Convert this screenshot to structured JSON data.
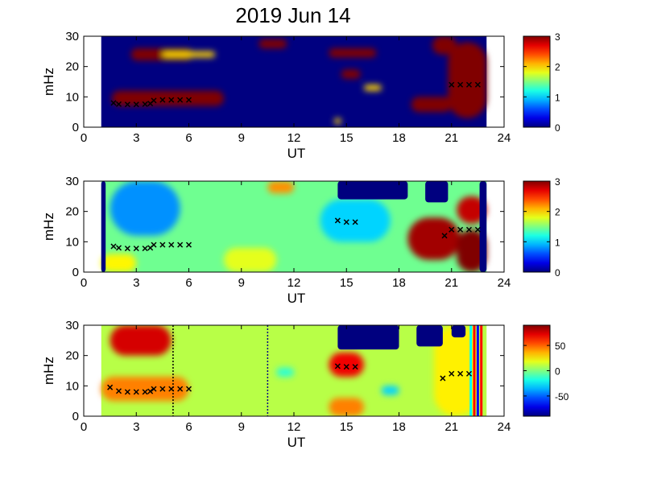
{
  "title": "2019 Jun 14",
  "colors": {
    "background": "#ffffff",
    "no_data": "#00007f",
    "detected_peak": "#7f0000",
    "marker": "#000000",
    "colormap": "jet"
  },
  "chart_data": [
    {
      "type": "heatmap",
      "panel": "top",
      "xlabel": "UT",
      "ylabel": "mHz",
      "xlim": [
        0,
        24
      ],
      "ylim": [
        0,
        30
      ],
      "xticks": [
        "0",
        "3",
        "6",
        "9",
        "12",
        "15",
        "18",
        "21",
        "24"
      ],
      "yticks": [
        "0",
        "10",
        "20",
        "30"
      ],
      "data_range_ut": [
        1,
        23
      ],
      "colorbar": {
        "range": [
          0,
          3
        ],
        "ticks": [
          "0",
          "1",
          "2",
          "3"
        ]
      },
      "background_level": 0,
      "blobs": [
        {
          "x": [
            1.6,
            8.0
          ],
          "y": [
            7,
            12
          ],
          "level": 3
        },
        {
          "x": [
            2.7,
            6.2
          ],
          "y": [
            22,
            26
          ],
          "level": 3
        },
        {
          "x": [
            10.0,
            11.6
          ],
          "y": [
            26,
            29
          ],
          "level": 3
        },
        {
          "x": [
            14.0,
            16.7
          ],
          "y": [
            23,
            26
          ],
          "level": 3
        },
        {
          "x": [
            14.7,
            15.8
          ],
          "y": [
            16,
            19
          ],
          "level": 3
        },
        {
          "x": [
            18.7,
            21.0
          ],
          "y": [
            5,
            10
          ],
          "level": 3
        },
        {
          "x": [
            20.8,
            23.0
          ],
          "y": [
            3,
            28
          ],
          "level": 3
        },
        {
          "x": [
            19.9,
            21.3
          ],
          "y": [
            24,
            30
          ],
          "level": 3
        },
        {
          "x": [
            16.0,
            17.0
          ],
          "y": [
            12,
            14
          ],
          "level": 2
        },
        {
          "x": [
            14.3,
            14.7
          ],
          "y": [
            1,
            3
          ],
          "level": 2
        },
        {
          "x": [
            4.5,
            7.5
          ],
          "y": [
            23,
            25
          ],
          "level": 2
        }
      ],
      "series": [
        {
          "x": [
            1.7,
            2.0,
            2.5,
            3.0,
            3.5,
            3.8,
            4.0,
            4.5,
            5.0,
            5.5,
            6.0
          ],
          "y": [
            8,
            7.6,
            7.5,
            7.5,
            7.6,
            7.8,
            8.8,
            9.0,
            9.0,
            9.0,
            9.0
          ]
        },
        {
          "x": [
            21.0,
            21.5,
            22.0,
            22.5
          ],
          "y": [
            14,
            14,
            14,
            14
          ]
        }
      ]
    },
    {
      "type": "heatmap",
      "panel": "middle",
      "xlabel": "UT",
      "ylabel": "mHz",
      "xlim": [
        0,
        24
      ],
      "ylim": [
        0,
        30
      ],
      "xticks": [
        "0",
        "3",
        "6",
        "9",
        "12",
        "15",
        "18",
        "21",
        "24"
      ],
      "yticks": [
        "0",
        "10",
        "20",
        "30"
      ],
      "data_range_ut": [
        1,
        23
      ],
      "colorbar": {
        "range": [
          0,
          3
        ],
        "ticks": [
          "0",
          "1",
          "2",
          "3"
        ]
      },
      "background_level": 1.45,
      "blobs": [
        {
          "x": [
            1.5,
            5.5
          ],
          "y": [
            12,
            30
          ],
          "level": 0.8
        },
        {
          "x": [
            13.5,
            17.5
          ],
          "y": [
            10,
            24
          ],
          "level": 1.0
        },
        {
          "x": [
            18.5,
            21.5
          ],
          "y": [
            4,
            18
          ],
          "level": 2.9
        },
        {
          "x": [
            21.3,
            23.0
          ],
          "y": [
            0,
            14
          ],
          "level": 3.0
        },
        {
          "x": [
            21.3,
            23.0
          ],
          "y": [
            16,
            25
          ],
          "level": 2.8
        },
        {
          "x": [
            10.5,
            12.0
          ],
          "y": [
            26,
            30
          ],
          "level": 2.2
        },
        {
          "x": [
            1.0,
            3.0
          ],
          "y": [
            0,
            6
          ],
          "level": 1.9
        },
        {
          "x": [
            8.0,
            11.0
          ],
          "y": [
            0,
            8
          ],
          "level": 1.8
        }
      ],
      "no_data_regions": [
        {
          "x": [
            1.0,
            1.25
          ],
          "y": [
            0,
            30
          ]
        },
        {
          "x": [
            14.5,
            18.5
          ],
          "y": [
            24,
            30
          ]
        },
        {
          "x": [
            19.5,
            20.8
          ],
          "y": [
            23,
            30
          ]
        },
        {
          "x": [
            22.6,
            23.0
          ],
          "y": [
            0,
            30
          ]
        }
      ],
      "series": [
        {
          "x": [
            1.7,
            2.0,
            2.5,
            3.0,
            3.5,
            3.8,
            4.0,
            4.5,
            5.0,
            5.5,
            6.0
          ],
          "y": [
            8.5,
            8.0,
            7.8,
            7.8,
            7.8,
            8.0,
            9.0,
            9.0,
            9.0,
            9.0,
            9.0
          ]
        },
        {
          "x": [
            14.5,
            15.0,
            15.5
          ],
          "y": [
            17,
            16.5,
            16.5
          ]
        },
        {
          "x": [
            20.6,
            21.0,
            21.5,
            22.0,
            22.5
          ],
          "y": [
            12,
            14,
            14,
            14,
            14
          ]
        }
      ]
    },
    {
      "type": "heatmap",
      "panel": "bottom",
      "xlabel": "UT",
      "ylabel": "mHz",
      "xlim": [
        0,
        24
      ],
      "ylim": [
        0,
        30
      ],
      "xticks": [
        "0",
        "3",
        "6",
        "9",
        "12",
        "15",
        "18",
        "21",
        "24"
      ],
      "yticks": [
        "0",
        "10",
        "20",
        "30"
      ],
      "data_range_ut": [
        1,
        23
      ],
      "colorbar": {
        "range": [
          -90,
          90
        ],
        "ticks": [
          "50",
          "0",
          "-50"
        ],
        "tick_values": [
          50,
          0,
          -50
        ]
      },
      "background_level": 10,
      "blobs": [
        {
          "x": [
            1.5,
            5.0
          ],
          "y": [
            20,
            30
          ],
          "level": 75
        },
        {
          "x": [
            1.0,
            6.0
          ],
          "y": [
            5,
            13
          ],
          "level": 45
        },
        {
          "x": [
            14.0,
            16.0
          ],
          "y": [
            13,
            21
          ],
          "level": 70
        },
        {
          "x": [
            14.0,
            16.0
          ],
          "y": [
            0,
            6
          ],
          "level": 45
        },
        {
          "x": [
            17.0,
            18.0
          ],
          "y": [
            7,
            10
          ],
          "level": -30
        },
        {
          "x": [
            11.0,
            12.0
          ],
          "y": [
            13,
            16
          ],
          "level": -15
        },
        {
          "x": [
            20.0,
            22.5
          ],
          "y": [
            0,
            30
          ],
          "level": 25
        }
      ],
      "no_data_regions": [
        {
          "x": [
            14.5,
            18.0
          ],
          "y": [
            22,
            30
          ]
        },
        {
          "x": [
            19.0,
            20.5
          ],
          "y": [
            23,
            30
          ]
        },
        {
          "x": [
            21.0,
            21.8
          ],
          "y": [
            26,
            30
          ]
        }
      ],
      "vertical_lines": [
        {
          "x": 5.1,
          "style": "dotted",
          "color": "#000000"
        },
        {
          "x": 10.5,
          "style": "dotted",
          "color": "#000080"
        },
        {
          "x": 22.3,
          "style": "solid",
          "color": "#ff0000"
        },
        {
          "x": 22.5,
          "style": "solid",
          "color": "#0000ff"
        },
        {
          "x": 22.7,
          "style": "solid",
          "color": "#ff0000"
        },
        {
          "x": 22.1,
          "style": "solid",
          "color": "#00ffff"
        }
      ],
      "series": [
        {
          "x": [
            1.5,
            2.0,
            2.5,
            3.0,
            3.5,
            3.8,
            4.0,
            4.5,
            5.0,
            5.5,
            6.0
          ],
          "y": [
            9.5,
            8.3,
            8.0,
            8.0,
            8.0,
            8.2,
            9.0,
            9.0,
            9.0,
            9.0,
            9.0
          ]
        },
        {
          "x": [
            14.5,
            15.0,
            15.5
          ],
          "y": [
            16.5,
            16.3,
            16.3
          ]
        },
        {
          "x": [
            20.5,
            21.0,
            21.5,
            22.0
          ],
          "y": [
            12.5,
            14,
            14,
            14
          ]
        }
      ]
    }
  ]
}
